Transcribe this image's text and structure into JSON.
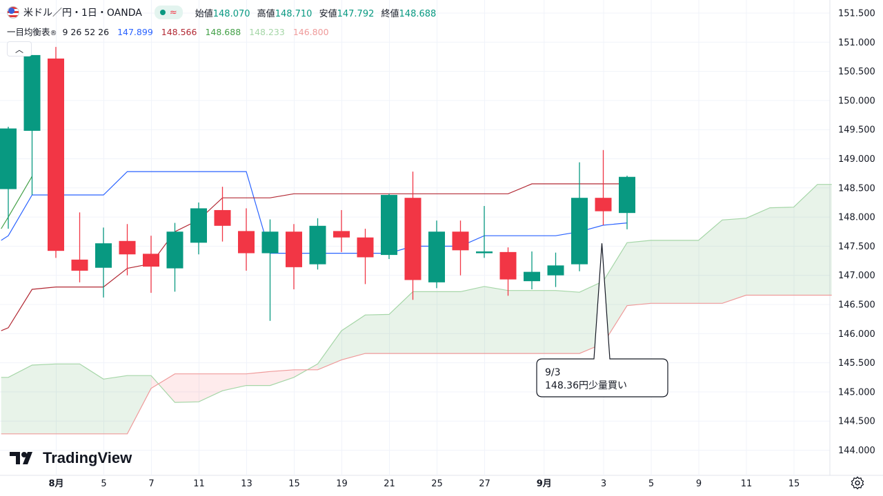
{
  "header": {
    "symbol": "米ドル／円・1日・OANDA",
    "live_icon": "market-open-dot",
    "wave_icon": "wave-icon",
    "open_label": "始値",
    "open_value": "148.070",
    "high_label": "高値",
    "high_value": "148.710",
    "low_label": "安値",
    "low_value": "147.792",
    "close_label": "終値",
    "close_value": "148.688"
  },
  "indicator": {
    "name": "一目均衡表",
    "params": "9 26 52 26",
    "values": [
      "147.899",
      "148.566",
      "148.688",
      "148.233",
      "146.800"
    ],
    "value_colors": [
      "#2962ff",
      "#b22833",
      "#43a047",
      "#a5d6a7",
      "#ef9a9a"
    ]
  },
  "collapse_icon": "chevron-up-icon",
  "logo_text": "TradingView",
  "annotation": {
    "line1": "9/3",
    "line2": "148.36円少量買い"
  },
  "chart_data": {
    "type": "candlestick",
    "y_ticks": [
      "151.500",
      "151.000",
      "150.500",
      "150.000",
      "149.500",
      "149.000",
      "148.500",
      "148.000",
      "147.500",
      "147.000",
      "146.500",
      "146.000",
      "145.500",
      "145.000",
      "144.500",
      "144.000"
    ],
    "ylim": [
      143.8,
      151.7
    ],
    "x_ticks": [
      {
        "label": "8月",
        "i": 2,
        "bold": true
      },
      {
        "label": "5",
        "i": 4
      },
      {
        "label": "7",
        "i": 6
      },
      {
        "label": "11",
        "i": 8
      },
      {
        "label": "13",
        "i": 10
      },
      {
        "label": "15",
        "i": 12
      },
      {
        "label": "19",
        "i": 14
      },
      {
        "label": "21",
        "i": 16
      },
      {
        "label": "25",
        "i": 18
      },
      {
        "label": "27",
        "i": 20
      },
      {
        "label": "9月",
        "i": 22.5,
        "bold": true
      },
      {
        "label": "3",
        "i": 25
      },
      {
        "label": "5",
        "i": 27
      },
      {
        "label": "9",
        "i": 29
      },
      {
        "label": "11",
        "i": 31
      },
      {
        "label": "15",
        "i": 33
      }
    ],
    "colors": {
      "up": "#089981",
      "down": "#f23645"
    },
    "candles": [
      {
        "o": 148.48,
        "h": 149.55,
        "l": 147.8,
        "c": 149.52
      },
      {
        "o": 149.48,
        "h": 150.78,
        "l": 148.38,
        "c": 150.78
      },
      {
        "o": 150.72,
        "h": 150.92,
        "l": 147.3,
        "c": 147.42
      },
      {
        "o": 147.27,
        "h": 148.08,
        "l": 146.88,
        "c": 147.08
      },
      {
        "o": 147.13,
        "h": 147.82,
        "l": 146.62,
        "c": 147.55
      },
      {
        "o": 147.59,
        "h": 147.88,
        "l": 147.0,
        "c": 147.36
      },
      {
        "o": 147.37,
        "h": 147.68,
        "l": 146.7,
        "c": 147.15
      },
      {
        "o": 147.12,
        "h": 147.9,
        "l": 146.72,
        "c": 147.75
      },
      {
        "o": 147.56,
        "h": 148.25,
        "l": 147.36,
        "c": 148.15
      },
      {
        "o": 148.12,
        "h": 148.52,
        "l": 147.58,
        "c": 147.85
      },
      {
        "o": 147.76,
        "h": 148.15,
        "l": 147.08,
        "c": 147.38
      },
      {
        "o": 147.38,
        "h": 147.96,
        "l": 146.22,
        "c": 147.75
      },
      {
        "o": 147.75,
        "h": 147.88,
        "l": 146.76,
        "c": 147.14
      },
      {
        "o": 147.19,
        "h": 147.98,
        "l": 147.1,
        "c": 147.85
      },
      {
        "o": 147.76,
        "h": 148.12,
        "l": 147.4,
        "c": 147.65
      },
      {
        "o": 147.65,
        "h": 147.8,
        "l": 146.85,
        "c": 147.31
      },
      {
        "o": 147.35,
        "h": 148.4,
        "l": 147.28,
        "c": 148.38
      },
      {
        "o": 148.33,
        "h": 148.78,
        "l": 146.58,
        "c": 146.92
      },
      {
        "o": 146.88,
        "h": 147.94,
        "l": 146.78,
        "c": 147.75
      },
      {
        "o": 147.75,
        "h": 147.94,
        "l": 147.0,
        "c": 147.43
      },
      {
        "o": 147.38,
        "h": 148.19,
        "l": 147.3,
        "c": 147.41
      },
      {
        "o": 147.4,
        "h": 147.48,
        "l": 146.65,
        "c": 146.93
      },
      {
        "o": 146.9,
        "h": 147.41,
        "l": 146.76,
        "c": 147.06
      },
      {
        "o": 147.0,
        "h": 147.39,
        "l": 146.8,
        "c": 147.17
      },
      {
        "o": 147.19,
        "h": 148.94,
        "l": 147.07,
        "c": 148.33
      },
      {
        "o": 148.33,
        "h": 149.15,
        "l": 147.86,
        "c": 148.1
      },
      {
        "o": 148.07,
        "h": 148.71,
        "l": 147.79,
        "c": 148.69
      }
    ],
    "series": [
      {
        "key": "tenkan",
        "color": "#2962ff",
        "points": [
          [
            -0.3,
            147.6
          ],
          [
            0,
            147.68
          ],
          [
            1,
            148.38
          ],
          [
            2,
            148.38
          ],
          [
            3,
            148.38
          ],
          [
            4,
            148.38
          ],
          [
            5,
            148.78
          ],
          [
            6,
            148.78
          ],
          [
            7,
            148.78
          ],
          [
            8,
            148.78
          ],
          [
            9,
            148.78
          ],
          [
            10,
            148.78
          ],
          [
            11,
            147.38
          ],
          [
            12,
            147.38
          ],
          [
            13,
            147.38
          ],
          [
            14,
            147.38
          ],
          [
            15,
            147.38
          ],
          [
            16,
            147.38
          ],
          [
            17,
            147.5
          ],
          [
            18,
            147.5
          ],
          [
            19,
            147.5
          ],
          [
            20,
            147.68
          ],
          [
            21,
            147.68
          ],
          [
            22,
            147.68
          ],
          [
            23,
            147.68
          ],
          [
            24,
            147.75
          ],
          [
            25,
            147.86
          ],
          [
            26,
            147.9
          ]
        ]
      },
      {
        "key": "kijun",
        "color": "#b22833",
        "points": [
          [
            -0.3,
            146.05
          ],
          [
            0,
            146.1
          ],
          [
            1,
            146.76
          ],
          [
            2,
            146.8
          ],
          [
            3,
            146.8
          ],
          [
            4,
            146.8
          ],
          [
            5,
            147.12
          ],
          [
            6,
            147.2
          ],
          [
            7,
            147.75
          ],
          [
            8,
            147.95
          ],
          [
            9,
            148.33
          ],
          [
            10,
            148.33
          ],
          [
            11,
            148.33
          ],
          [
            12,
            148.4
          ],
          [
            13,
            148.4
          ],
          [
            14,
            148.4
          ],
          [
            15,
            148.4
          ],
          [
            16,
            148.4
          ],
          [
            17,
            148.4
          ],
          [
            18,
            148.4
          ],
          [
            19,
            148.4
          ],
          [
            20,
            148.4
          ],
          [
            21,
            148.4
          ],
          [
            22,
            148.57
          ],
          [
            23,
            148.57
          ],
          [
            24,
            148.57
          ],
          [
            25,
            148.57
          ],
          [
            26,
            148.57
          ]
        ]
      },
      {
        "key": "chikou",
        "color": "#43a047",
        "points": [
          [
            -0.3,
            147.8
          ],
          [
            0,
            148.0
          ],
          [
            1,
            148.7
          ]
        ]
      },
      {
        "key": "senkou_a",
        "color": "#a5d6a7",
        "points": [
          [
            -0.3,
            145.25
          ],
          [
            0,
            145.25
          ],
          [
            1,
            145.46
          ],
          [
            2,
            145.48
          ],
          [
            3,
            145.48
          ],
          [
            4,
            145.22
          ],
          [
            5,
            145.28
          ],
          [
            6,
            145.28
          ],
          [
            7,
            144.82
          ],
          [
            8,
            144.83
          ],
          [
            9,
            145.02
          ],
          [
            10,
            145.11
          ],
          [
            11,
            145.11
          ],
          [
            12,
            145.25
          ],
          [
            13,
            145.48
          ],
          [
            14,
            146.05
          ],
          [
            15,
            146.32
          ],
          [
            16,
            146.33
          ],
          [
            17,
            146.72
          ],
          [
            18,
            146.72
          ],
          [
            19,
            146.72
          ],
          [
            20,
            146.81
          ],
          [
            21,
            146.74
          ],
          [
            22,
            146.74
          ],
          [
            23,
            146.74
          ],
          [
            24,
            146.71
          ],
          [
            25,
            146.9
          ],
          [
            26,
            147.56
          ],
          [
            27,
            147.6
          ],
          [
            28,
            147.6
          ],
          [
            29,
            147.6
          ],
          [
            30,
            147.95
          ],
          [
            31,
            147.98
          ],
          [
            32,
            148.16
          ],
          [
            33,
            148.17
          ],
          [
            34,
            148.56
          ],
          [
            34.6,
            148.56
          ]
        ]
      },
      {
        "key": "senkou_b",
        "color": "#ef9a9a",
        "points": [
          [
            -0.3,
            144.28
          ],
          [
            0,
            144.28
          ],
          [
            1,
            144.28
          ],
          [
            2,
            144.28
          ],
          [
            3,
            144.28
          ],
          [
            4,
            144.28
          ],
          [
            5,
            144.28
          ],
          [
            6,
            145.06
          ],
          [
            7,
            145.31
          ],
          [
            8,
            145.31
          ],
          [
            9,
            145.31
          ],
          [
            10,
            145.31
          ],
          [
            11,
            145.35
          ],
          [
            12,
            145.38
          ],
          [
            13,
            145.38
          ],
          [
            14,
            145.55
          ],
          [
            15,
            145.66
          ],
          [
            16,
            145.66
          ],
          [
            17,
            145.66
          ],
          [
            18,
            145.66
          ],
          [
            19,
            145.66
          ],
          [
            20,
            145.66
          ],
          [
            21,
            145.66
          ],
          [
            22,
            145.66
          ],
          [
            23,
            145.66
          ],
          [
            24,
            145.66
          ],
          [
            25,
            145.83
          ],
          [
            26,
            146.48
          ],
          [
            27,
            146.52
          ],
          [
            28,
            146.52
          ],
          [
            29,
            146.52
          ],
          [
            30,
            146.52
          ],
          [
            31,
            146.66
          ],
          [
            32,
            146.66
          ],
          [
            33,
            146.66
          ],
          [
            34,
            146.66
          ],
          [
            34.6,
            146.66
          ]
        ]
      }
    ],
    "annotation_point": {
      "i": 25,
      "y": 147.55
    }
  }
}
